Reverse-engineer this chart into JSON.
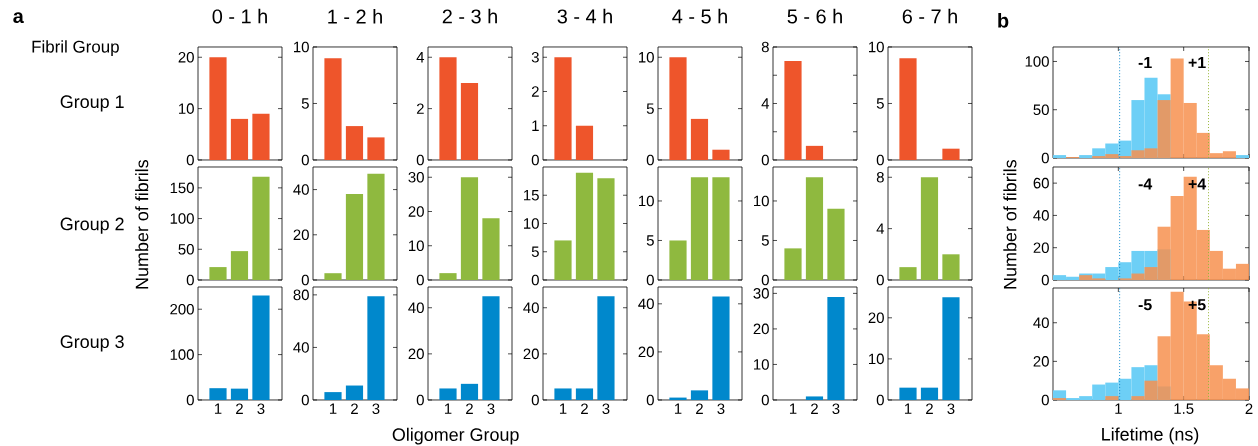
{
  "chart_data": [
    {
      "type": "bar",
      "title": "0 - 1 h",
      "categories": [
        "1",
        "2",
        "3"
      ],
      "values": [
        20,
        8,
        9
      ],
      "color": "#ee552b",
      "ylim": [
        0,
        22
      ],
      "yticks": [
        0,
        10,
        20
      ],
      "tick_labels": "y",
      "annotations": [
        "a",
        "Fibril Group",
        "Group 1"
      ]
    },
    {
      "type": "bar",
      "title": "1 - 2 h",
      "categories": [
        "1",
        "2",
        "3"
      ],
      "values": [
        9,
        3,
        2
      ],
      "color": "#ee552b",
      "ylim": [
        0,
        10
      ],
      "yticks": [
        0,
        5,
        10
      ],
      "tick_labels": "y"
    },
    {
      "type": "bar",
      "title": "2 - 3 h",
      "categories": [
        "1",
        "2",
        "3"
      ],
      "values": [
        4,
        3,
        0
      ],
      "color": "#ee552b",
      "ylim": [
        0,
        4.4
      ],
      "yticks": [
        0,
        2,
        4
      ],
      "tick_labels": "y"
    },
    {
      "type": "bar",
      "title": "3 - 4 h",
      "categories": [
        "1",
        "2",
        "3"
      ],
      "values": [
        3,
        1,
        0
      ],
      "color": "#ee552b",
      "ylim": [
        0,
        3.3
      ],
      "yticks": [
        0,
        1,
        2,
        3
      ],
      "tick_labels": "y"
    },
    {
      "type": "bar",
      "title": "4 - 5 h",
      "categories": [
        "1",
        "2",
        "3"
      ],
      "values": [
        10,
        4,
        1
      ],
      "color": "#ee552b",
      "ylim": [
        0,
        11
      ],
      "yticks": [
        0,
        5,
        10
      ],
      "tick_labels": "y"
    },
    {
      "type": "bar",
      "title": "5 - 6 h",
      "categories": [
        "1",
        "2",
        "3"
      ],
      "values": [
        7,
        1,
        0
      ],
      "color": "#ee552b",
      "ylim": [
        0,
        8
      ],
      "yticks": [
        0,
        {
          "value": 2,
          "label": null
        },
        4,
        {
          "value": 6,
          "label": null
        },
        8
      ],
      "tick_labels": "y"
    },
    {
      "type": "bar",
      "title": "6 - 7 h",
      "categories": [
        "1",
        "2",
        "3"
      ],
      "values": [
        9,
        0,
        1
      ],
      "color": "#ee552b",
      "ylim": [
        0,
        10
      ],
      "yticks": [
        0,
        5,
        10
      ],
      "tick_labels": "y"
    },
    {
      "type": "bar",
      "categories": [
        "1",
        "2",
        "3"
      ],
      "values": [
        21,
        47,
        168
      ],
      "color": "#8fb93f",
      "ylim": [
        0,
        184
      ],
      "yticks": [
        0,
        50,
        100,
        150
      ],
      "tick_labels": "y",
      "ylabel": "Number of fibrils",
      "annotations": [
        "Group 2"
      ]
    },
    {
      "type": "bar",
      "categories": [
        "1",
        "2",
        "3"
      ],
      "values": [
        3,
        38,
        47
      ],
      "color": "#8fb93f",
      "ylim": [
        0,
        50
      ],
      "yticks": [
        0,
        20,
        40
      ],
      "tick_labels": "y"
    },
    {
      "type": "bar",
      "categories": [
        "1",
        "2",
        "3"
      ],
      "values": [
        2,
        30,
        18
      ],
      "color": "#8fb93f",
      "ylim": [
        0,
        33
      ],
      "yticks": [
        0,
        10,
        20,
        30
      ],
      "tick_labels": "y"
    },
    {
      "type": "bar",
      "categories": [
        "1",
        "2",
        "3"
      ],
      "values": [
        7,
        19,
        18
      ],
      "color": "#8fb93f",
      "ylim": [
        0,
        20
      ],
      "yticks": [
        0,
        5,
        10,
        15
      ],
      "tick_labels": "y"
    },
    {
      "type": "bar",
      "categories": [
        "1",
        "2",
        "3"
      ],
      "values": [
        5,
        13,
        13
      ],
      "color": "#8fb93f",
      "ylim": [
        0,
        14.3
      ],
      "yticks": [
        0,
        5,
        10
      ],
      "tick_labels": "y"
    },
    {
      "type": "bar",
      "categories": [
        "1",
        "2",
        "3"
      ],
      "values": [
        4,
        13,
        9
      ],
      "color": "#8fb93f",
      "ylim": [
        0,
        14.3
      ],
      "yticks": [
        0,
        5,
        10
      ],
      "tick_labels": "y"
    },
    {
      "type": "bar",
      "categories": [
        "1",
        "2",
        "3"
      ],
      "values": [
        1,
        8,
        2
      ],
      "color": "#8fb93f",
      "ylim": [
        0,
        8.8
      ],
      "yticks": [
        0,
        4,
        8
      ],
      "tick_labels": "y"
    },
    {
      "type": "bar",
      "categories": [
        "1",
        "2",
        "3"
      ],
      "values": [
        26,
        25,
        230
      ],
      "color": "#0088cc",
      "ylim": [
        0,
        249
      ],
      "yticks": [
        0,
        100,
        200
      ],
      "annotations": [
        "Group 3"
      ]
    },
    {
      "type": "bar",
      "categories": [
        "1",
        "2",
        "3"
      ],
      "values": [
        6,
        11,
        79
      ],
      "color": "#0088cc",
      "ylim": [
        0,
        86
      ],
      "yticks": [
        0,
        40,
        80
      ]
    },
    {
      "type": "bar",
      "categories": [
        "1",
        "2",
        "3"
      ],
      "values": [
        5,
        7,
        45
      ],
      "color": "#0088cc",
      "ylim": [
        0,
        49
      ],
      "yticks": [
        0,
        20,
        40
      ]
    },
    {
      "type": "bar",
      "categories": [
        "1",
        "2",
        "3"
      ],
      "values": [
        5,
        5,
        45
      ],
      "color": "#0088cc",
      "ylim": [
        0,
        49
      ],
      "yticks": [
        0,
        20,
        40
      ],
      "xlabel": "Oligomer Group"
    },
    {
      "type": "bar",
      "categories": [
        "1",
        "2",
        "3"
      ],
      "values": [
        1,
        4,
        43
      ],
      "color": "#0088cc",
      "ylim": [
        0,
        47
      ],
      "yticks": [
        0,
        20,
        40
      ]
    },
    {
      "type": "bar",
      "categories": [
        "1",
        "2",
        "3"
      ],
      "values": [
        0,
        1,
        29
      ],
      "color": "#0088cc",
      "ylim": [
        0,
        31.8
      ],
      "yticks": [
        0,
        10,
        20,
        30
      ]
    },
    {
      "type": "bar",
      "categories": [
        "1",
        "2",
        "3"
      ],
      "values": [
        3,
        3,
        25
      ],
      "color": "#0088cc",
      "ylim": [
        0,
        27.5
      ],
      "yticks": [
        0,
        10,
        20
      ]
    },
    {
      "type": "histogram",
      "bins": [
        0.5,
        0.6,
        0.7,
        0.8,
        0.9,
        1.0,
        1.1,
        1.2,
        1.3,
        1.4,
        1.5,
        1.6,
        1.7,
        1.8,
        1.9,
        2.0
      ],
      "series": [
        {
          "color": "#6dcff6",
          "values": [
            3,
            0,
            3,
            10,
            15,
            18,
            60,
            83,
            66,
            0,
            null,
            0,
            0,
            0,
            3
          ]
        },
        {
          "color": "#f7914f",
          "values": [
            0,
            1,
            0,
            2,
            4,
            2,
            8,
            10,
            60,
            103,
            57,
            26,
            5,
            7,
            0
          ]
        }
      ],
      "xlim": [
        0.5,
        2
      ],
      "ylim": [
        0,
        115
      ],
      "xticks": [
        1,
        1.5,
        2
      ],
      "yticks": [
        0,
        50,
        100
      ],
      "tick_labels": "y",
      "ref_lines": [
        {
          "axis": "x",
          "value": 1.01,
          "color": "#1a8fd0",
          "line_style": "dotted"
        },
        {
          "axis": "x",
          "value": 1.69,
          "color": "#9ab83a",
          "line_style": "dotted"
        }
      ],
      "annotations": [
        "b",
        "-1",
        "+1"
      ]
    },
    {
      "type": "histogram",
      "bins": [
        0.5,
        0.6,
        0.7,
        0.8,
        0.9,
        1.0,
        1.1,
        1.2,
        1.3,
        1.4,
        1.5,
        1.6,
        1.7,
        1.8,
        1.9,
        2.0
      ],
      "series": [
        {
          "color": "#6dcff6",
          "values": [
            3,
            2,
            4,
            4,
            8,
            11,
            18,
            18,
            19,
            0,
            0,
            0,
            0,
            0,
            0
          ]
        },
        {
          "color": "#f7914f",
          "values": [
            0,
            0,
            3,
            1,
            0,
            1,
            4,
            8,
            33,
            52,
            64,
            31,
            18,
            7,
            10
          ]
        }
      ],
      "xlim": [
        0.5,
        2
      ],
      "ylim": [
        0,
        70
      ],
      "xticks": [
        1,
        1.5,
        2
      ],
      "yticks": [
        0,
        20,
        40,
        60
      ],
      "tick_labels": "y",
      "ylabel": "Number of fibrils",
      "ref_lines": [
        {
          "axis": "x",
          "value": 1.01,
          "color": "#1a8fd0",
          "line_style": "dotted"
        },
        {
          "axis": "x",
          "value": 1.69,
          "color": "#9ab83a",
          "line_style": "dotted"
        }
      ],
      "annotations": [
        "-4",
        "+4"
      ]
    },
    {
      "type": "histogram",
      "bins": [
        0.5,
        0.6,
        0.7,
        0.8,
        0.9,
        1.0,
        1.1,
        1.2,
        1.3,
        1.4,
        1.5,
        1.6,
        1.7,
        1.8,
        1.9,
        2.0
      ],
      "series": [
        {
          "color": "#6dcff6",
          "values": [
            5,
            1,
            2,
            8,
            9,
            11,
            17,
            18,
            7,
            0,
            0,
            0,
            0,
            0,
            0
          ]
        },
        {
          "color": "#f7914f",
          "values": [
            1,
            0,
            0,
            0,
            2,
            0,
            2,
            10,
            33,
            56,
            51,
            34,
            18,
            11,
            6
          ]
        }
      ],
      "xlim": [
        0.5,
        2
      ],
      "ylim": [
        0,
        58
      ],
      "xticks": [
        1,
        1.5,
        2
      ],
      "yticks": [
        0,
        20,
        40
      ],
      "xlabel": "Lifetime (ns)",
      "ref_lines": [
        {
          "axis": "x",
          "value": 1.01,
          "color": "#1a8fd0",
          "line_style": "dotted"
        },
        {
          "axis": "x",
          "value": 1.69,
          "color": "#9ab83a",
          "line_style": "dotted"
        }
      ],
      "annotations": [
        "-5",
        "+5"
      ]
    }
  ]
}
